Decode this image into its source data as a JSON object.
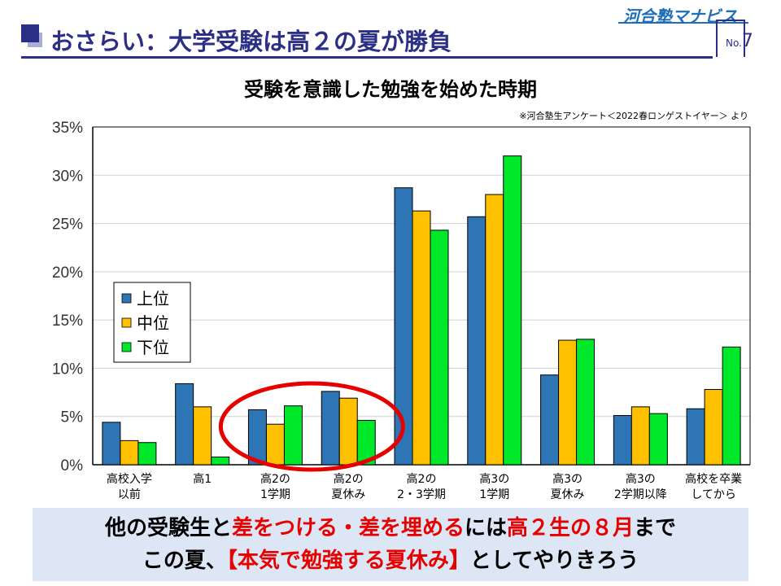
{
  "header": {
    "title": "おさらい：大学受験は高２の夏が勝負",
    "brand": "河合塾マナビス",
    "page_prefix": "No.",
    "page_number": "7"
  },
  "source_note": "※河合塾生アンケート＜2022春ロンゲストイヤー＞ より",
  "colors": {
    "upper": "#2e75b6",
    "middle": "#ffc000",
    "lower": "#00e82a",
    "highlight": "#e60000",
    "title": "#2b2f86"
  },
  "chart_data": {
    "type": "bar",
    "title": "受験を意識した勉強を始めた時期",
    "categories": [
      [
        "高校入学",
        "以前"
      ],
      [
        "高1"
      ],
      [
        "高2の",
        "1学期"
      ],
      [
        "高2の",
        "夏休み"
      ],
      [
        "高2の",
        "2・3学期"
      ],
      [
        "高3の",
        "1学期"
      ],
      [
        "高3の",
        "夏休み"
      ],
      [
        "高3の",
        "2学期以降"
      ],
      [
        "高校を卒業",
        "してから"
      ]
    ],
    "series": [
      {
        "name": "上位",
        "values": [
          4.4,
          8.4,
          5.7,
          7.6,
          28.7,
          25.7,
          9.3,
          5.1,
          5.8
        ]
      },
      {
        "name": "中位",
        "values": [
          2.5,
          6.0,
          4.2,
          6.9,
          26.3,
          28.0,
          12.9,
          6.0,
          7.8
        ]
      },
      {
        "name": "下位",
        "values": [
          2.3,
          0.8,
          6.1,
          4.6,
          24.3,
          32.0,
          13.0,
          5.3,
          12.2
        ]
      }
    ],
    "ylim": [
      0,
      35
    ],
    "yticks": [
      "0%",
      "5%",
      "10%",
      "15%",
      "20%",
      "25%",
      "30%",
      "35%"
    ],
    "grid": true,
    "legend": "left-middle",
    "highlighted_category": "高2の夏休み"
  },
  "message": {
    "line1": [
      {
        "text": "他の受験生と",
        "red": false
      },
      {
        "text": "差をつける・差を埋める",
        "red": true
      },
      {
        "text": "には",
        "red": false
      },
      {
        "text": "高２生の８月",
        "red": true
      },
      {
        "text": "まで",
        "red": false
      }
    ],
    "line2": [
      {
        "text": "この夏、",
        "red": false
      },
      {
        "text": "【本気で勉強する夏休み】",
        "red": true
      },
      {
        "text": "としてやりきろう",
        "red": false
      }
    ]
  }
}
